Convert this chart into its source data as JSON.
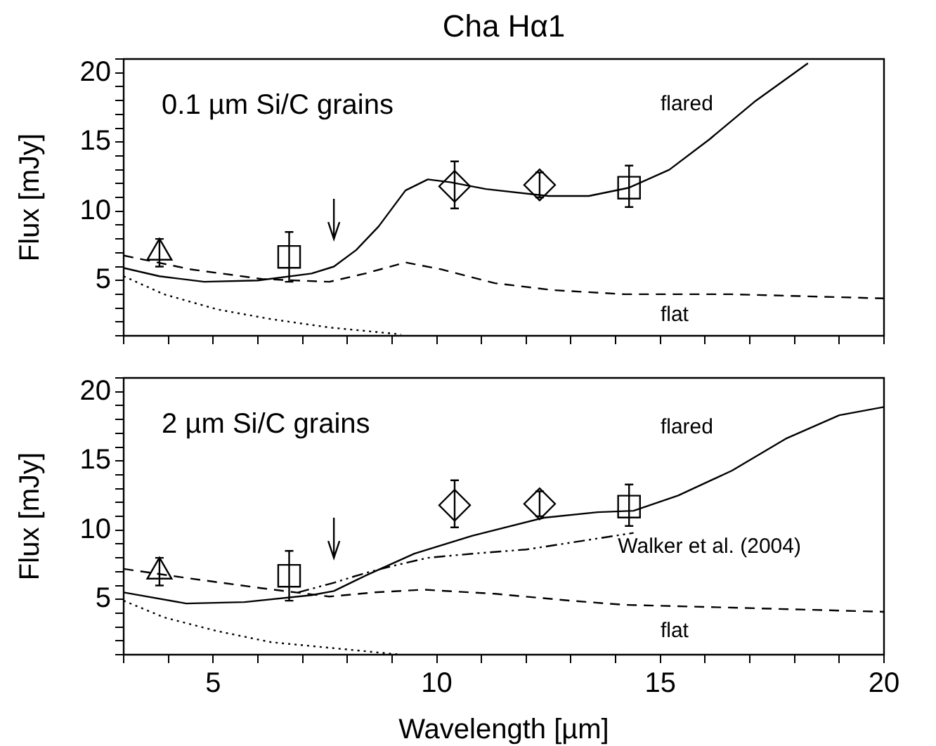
{
  "chart_data": [
    {
      "type": "line",
      "title": "Cha Hα1",
      "ylabel": "Flux [mJy]",
      "xlim": [
        3,
        20
      ],
      "ylim": [
        1,
        21
      ],
      "xticks": [
        {
          "value": 3,
          "label": null
        },
        {
          "value": 4,
          "label": null
        },
        5,
        {
          "value": 6,
          "label": null
        },
        {
          "value": 7,
          "label": null
        },
        {
          "value": 8,
          "label": null
        },
        {
          "value": 9,
          "label": null
        },
        10,
        {
          "value": 11,
          "label": null
        },
        {
          "value": 12,
          "label": null
        },
        {
          "value": 13,
          "label": null
        },
        {
          "value": 14,
          "label": null
        },
        15,
        {
          "value": 16,
          "label": null
        },
        {
          "value": 17,
          "label": null
        },
        {
          "value": 18,
          "label": null
        },
        {
          "value": 19,
          "label": null
        },
        20
      ],
      "yticks": [
        {
          "value": 1,
          "label": null
        },
        {
          "value": 2,
          "label": null
        },
        {
          "value": 3,
          "label": null
        },
        {
          "value": 4,
          "label": null
        },
        5,
        {
          "value": 6,
          "label": null
        },
        {
          "value": 7,
          "label": null
        },
        {
          "value": 8,
          "label": null
        },
        {
          "value": 9,
          "label": null
        },
        10,
        {
          "value": 11,
          "label": null
        },
        {
          "value": 12,
          "label": null
        },
        {
          "value": 13,
          "label": null
        },
        {
          "value": 14,
          "label": null
        },
        15,
        {
          "value": 16,
          "label": null
        },
        {
          "value": 17,
          "label": null
        },
        {
          "value": 18,
          "label": null
        },
        {
          "value": 19,
          "label": null
        },
        20,
        {
          "value": 21,
          "label": null
        }
      ],
      "tick_labels": "y",
      "annotations": [
        "0.1 µm Si/C grains",
        "flared",
        "flat"
      ],
      "series": [
        {
          "type": "line",
          "line_style": "solid",
          "color": "#000000",
          "x": [
            3,
            3.8,
            4.8,
            6,
            7.2,
            7.7,
            8.2,
            8.7,
            9.3,
            9.8,
            10.3,
            11.1,
            12.5,
            13.4,
            14.3,
            15.2,
            16.1,
            17.1,
            18.3
          ],
          "values": [
            5.9,
            5.3,
            4.9,
            5,
            5.5,
            6,
            7.2,
            8.9,
            11.5,
            12.3,
            12.1,
            11.6,
            11.1,
            11.1,
            11.7,
            13,
            15.2,
            17.9,
            20.7
          ]
        },
        {
          "type": "line",
          "line_style": "dashed",
          "color": "#000000",
          "x": [
            3,
            4.5,
            6.1,
            7.6,
            8.4,
            9.3,
            10.1,
            11.3,
            12.6,
            14.2,
            16.6,
            20
          ],
          "values": [
            6.8,
            5.8,
            5.1,
            4.9,
            5.5,
            6.3,
            5.8,
            4.8,
            4.3,
            4,
            4,
            3.7
          ]
        },
        {
          "type": "line",
          "line_style": "dotted",
          "color": "#000000",
          "x": [
            3,
            3.9,
            5.1,
            6.3,
            7.6,
            9.2
          ],
          "values": [
            5.3,
            4,
            2.9,
            2.2,
            1.6,
            1.1
          ]
        },
        {
          "type": "scatter",
          "marker": "triangle",
          "color": "#000000",
          "x": [
            3.8
          ],
          "values": [
            7
          ],
          "errors": [
            [
              6,
              8
            ]
          ]
        },
        {
          "type": "scatter",
          "marker": "square",
          "color": "#000000",
          "x": [
            6.7,
            14.3
          ],
          "values": [
            6.7,
            11.7
          ],
          "errors": [
            [
              4.9,
              8.5
            ],
            [
              10.3,
              13.3
            ]
          ]
        },
        {
          "type": "scatter",
          "marker": "diamond",
          "color": "#000000",
          "x": [
            10.4,
            12.3
          ],
          "values": [
            11.8,
            11.9
          ],
          "errors": [
            [
              10.2,
              13.6
            ],
            [
              11,
              12.8
            ]
          ]
        },
        {
          "type": "scatter",
          "color": "#000000",
          "x": [
            7.7
          ],
          "values": [
            8.5
          ],
          "errors": [
            [
              8,
              10.9
            ]
          ]
        }
      ]
    },
    {
      "type": "line",
      "ylabel": "Flux [mJy]",
      "xlabel": "Wavelength [µm]",
      "xlim": [
        3,
        20
      ],
      "ylim": [
        1,
        21
      ],
      "xticks": [
        {
          "value": 3,
          "label": null
        },
        {
          "value": 4,
          "label": null
        },
        5,
        {
          "value": 6,
          "label": null
        },
        {
          "value": 7,
          "label": null
        },
        {
          "value": 8,
          "label": null
        },
        {
          "value": 9,
          "label": null
        },
        10,
        {
          "value": 11,
          "label": null
        },
        {
          "value": 12,
          "label": null
        },
        {
          "value": 13,
          "label": null
        },
        {
          "value": 14,
          "label": null
        },
        15,
        {
          "value": 16,
          "label": null
        },
        {
          "value": 17,
          "label": null
        },
        {
          "value": 18,
          "label": null
        },
        {
          "value": 19,
          "label": null
        },
        20
      ],
      "yticks": [
        {
          "value": 1,
          "label": null
        },
        {
          "value": 2,
          "label": null
        },
        {
          "value": 3,
          "label": null
        },
        {
          "value": 4,
          "label": null
        },
        5,
        {
          "value": 6,
          "label": null
        },
        {
          "value": 7,
          "label": null
        },
        {
          "value": 8,
          "label": null
        },
        {
          "value": 9,
          "label": null
        },
        10,
        {
          "value": 11,
          "label": null
        },
        {
          "value": 12,
          "label": null
        },
        {
          "value": 13,
          "label": null
        },
        {
          "value": 14,
          "label": null
        },
        15,
        {
          "value": 16,
          "label": null
        },
        {
          "value": 17,
          "label": null
        },
        {
          "value": 18,
          "label": null
        },
        {
          "value": 19,
          "label": null
        },
        20,
        {
          "value": 21,
          "label": null
        }
      ],
      "annotations": [
        "2 µm Si/C grains",
        "flared",
        "flat",
        "Walker et al. (2004)"
      ],
      "series": [
        {
          "type": "line",
          "line_style": "solid",
          "color": "#000000",
          "x": [
            3,
            4.4,
            5.7,
            7.2,
            7.7,
            8.4,
            9.5,
            10.8,
            12.4,
            13.6,
            14.4,
            15.4,
            16.6,
            17.8,
            19,
            20
          ],
          "values": [
            5.5,
            4.7,
            4.8,
            5.3,
            5.6,
            6.7,
            8.3,
            9.6,
            10.9,
            11.3,
            11.4,
            12.5,
            14.3,
            16.6,
            18.3,
            18.9
          ]
        },
        {
          "type": "line",
          "line_style": "dashed",
          "color": "#000000",
          "x": [
            3,
            4.5,
            6.1,
            7.6,
            8.6,
            9.7,
            11.3,
            13,
            14.2,
            16.6,
            20
          ],
          "values": [
            7.2,
            6.5,
            5.8,
            5.2,
            5.5,
            5.7,
            5.4,
            4.9,
            4.6,
            4.4,
            4.1
          ]
        },
        {
          "type": "line",
          "line_style": "dotted",
          "color": "#000000",
          "x": [
            3,
            3.9,
            5.1,
            6.3,
            7.6,
            9.2
          ],
          "values": [
            4.9,
            3.7,
            2.7,
            1.9,
            1.5,
            1
          ]
        },
        {
          "type": "line",
          "line_style": "dashdotdot",
          "color": "#000000",
          "x": [
            6.9,
            7.7,
            8.4,
            9,
            9.8,
            10.8,
            12,
            13,
            14.4
          ],
          "values": [
            5.5,
            6.2,
            6.9,
            7.4,
            8,
            8.3,
            8.6,
            9.1,
            9.8
          ]
        },
        {
          "type": "scatter",
          "marker": "triangle",
          "color": "#000000",
          "x": [
            3.8
          ],
          "values": [
            7
          ],
          "errors": [
            [
              6,
              8
            ]
          ]
        },
        {
          "type": "scatter",
          "marker": "square",
          "color": "#000000",
          "x": [
            6.7,
            14.3
          ],
          "values": [
            6.7,
            11.7
          ],
          "errors": [
            [
              4.9,
              8.5
            ],
            [
              10.3,
              13.3
            ]
          ]
        },
        {
          "type": "scatter",
          "marker": "diamond",
          "color": "#000000",
          "x": [
            10.4,
            12.3
          ],
          "values": [
            11.8,
            11.9
          ],
          "errors": [
            [
              10.2,
              13.6
            ],
            [
              11,
              12.8
            ]
          ]
        },
        {
          "type": "scatter",
          "color": "#000000",
          "x": [
            7.7
          ],
          "values": [
            8.5
          ],
          "errors": [
            [
              8,
              10.9
            ]
          ]
        }
      ]
    }
  ]
}
